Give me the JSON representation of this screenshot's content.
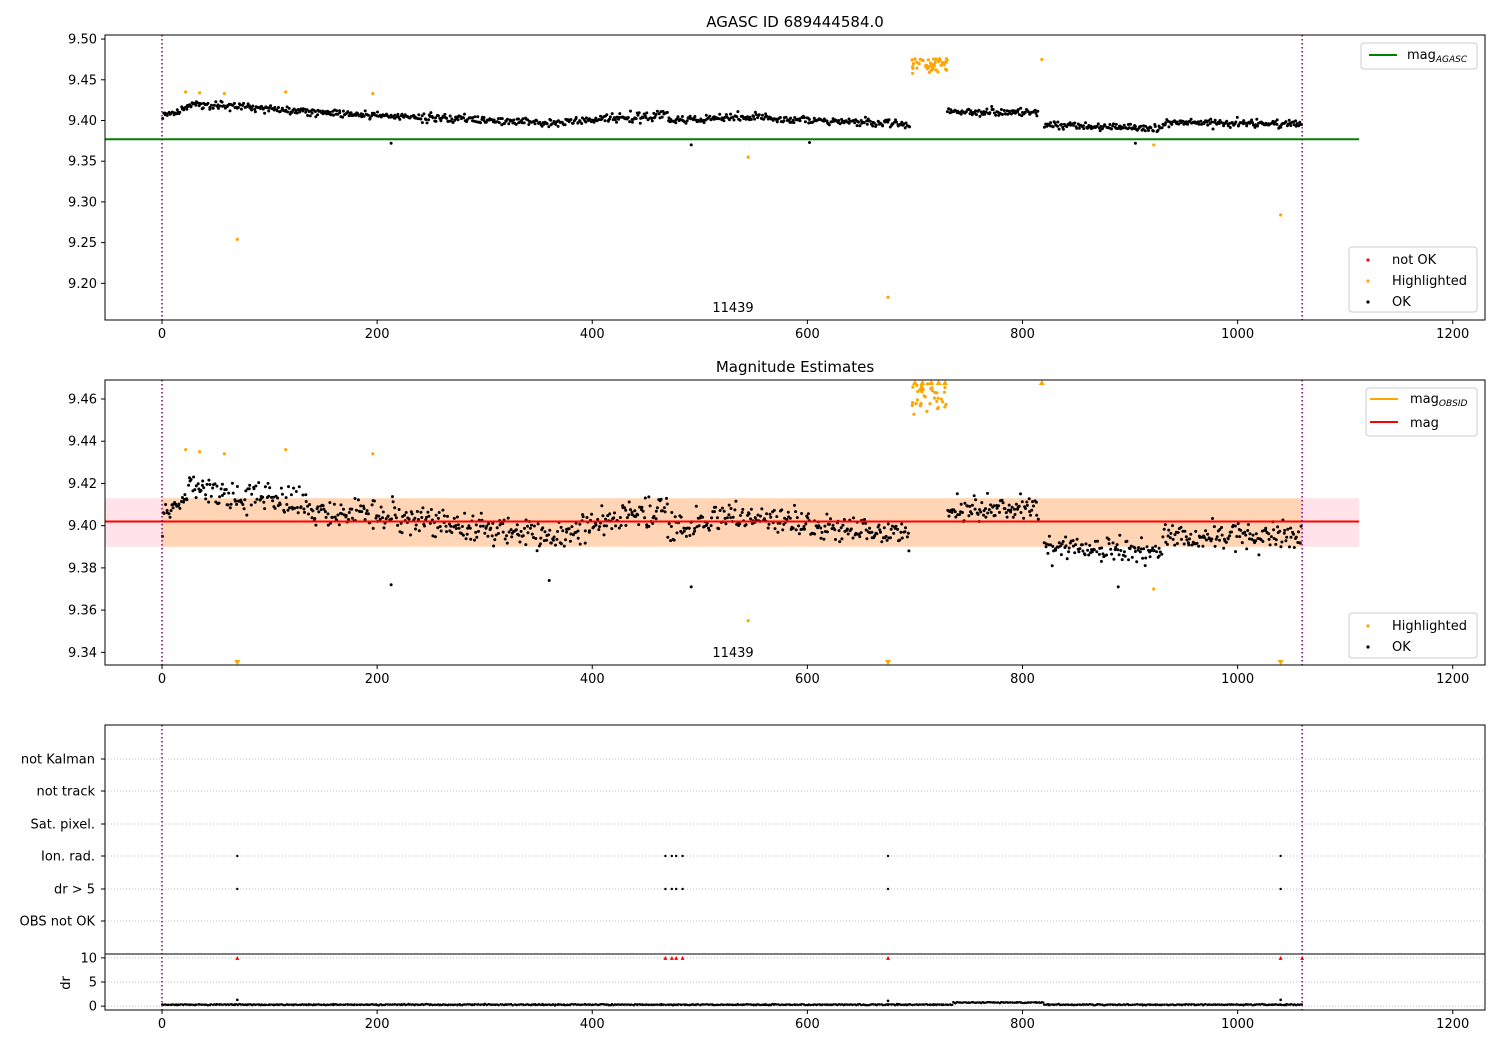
{
  "chart_data": [
    {
      "type": "scatter",
      "title": "AGASC ID 689444584.0",
      "annotation": "11439",
      "ylim": [
        9.155,
        9.505
      ],
      "yticks": [
        9.2,
        9.25,
        9.3,
        9.35,
        9.4,
        9.45,
        9.5
      ],
      "ytick_labels": [
        "9.20",
        "9.25",
        "9.30",
        "9.35",
        "9.40",
        "9.45",
        "9.50"
      ],
      "xlim": [
        -53,
        1230
      ],
      "xticks": [
        0,
        200,
        400,
        600,
        800,
        1000,
        1200
      ],
      "xtick_labels": [
        "0",
        "200",
        "400",
        "600",
        "800",
        "1000",
        "1200"
      ],
      "obs_bounds": [
        0,
        1060
      ],
      "reference_line": {
        "name": "mag",
        "name_sub": "AGASC",
        "value": 9.377,
        "x_range": [
          -53,
          1113
        ],
        "color": "#008000"
      },
      "legend_lines": [
        {
          "name": "mag",
          "sub": "AGASC",
          "color": "#008000"
        }
      ],
      "legend_points": [
        {
          "name": "not OK",
          "color": "#ff0000"
        },
        {
          "name": "Highlighted",
          "color": "#ffa500"
        },
        {
          "name": "OK",
          "color": "#000000"
        }
      ],
      "ok_segments": [
        {
          "x_start": 0,
          "x_end": 25,
          "y_start": 9.405,
          "y_end": 9.415,
          "spread": 0.007
        },
        {
          "x_start": 25,
          "x_end": 135,
          "y_start": 9.42,
          "y_end": 9.412,
          "spread": 0.008
        },
        {
          "x_start": 135,
          "x_end": 350,
          "y_start": 9.41,
          "y_end": 9.398,
          "spread": 0.009
        },
        {
          "x_start": 350,
          "x_end": 470,
          "y_start": 9.395,
          "y_end": 9.408,
          "spread": 0.009
        },
        {
          "x_start": 470,
          "x_end": 530,
          "y_start": 9.4,
          "y_end": 9.405,
          "spread": 0.009
        },
        {
          "x_start": 530,
          "x_end": 695,
          "y_start": 9.405,
          "y_end": 9.395,
          "spread": 0.008
        },
        {
          "x_start": 730,
          "x_end": 815,
          "y_start": 9.41,
          "y_end": 9.41,
          "spread": 0.008
        },
        {
          "x_start": 820,
          "x_end": 930,
          "y_start": 9.395,
          "y_end": 9.39,
          "spread": 0.007
        },
        {
          "x_start": 930,
          "x_end": 1060,
          "y_start": 9.397,
          "y_end": 9.396,
          "spread": 0.008
        }
      ],
      "ok_count": 1050,
      "ok_outliers": [
        [
          213,
          9.372
        ],
        [
          492,
          9.37
        ],
        [
          602,
          9.373
        ],
        [
          905,
          9.372
        ]
      ],
      "highlighted_points": [
        [
          22,
          9.435
        ],
        [
          35,
          9.434
        ],
        [
          58,
          9.433
        ],
        [
          70,
          9.254
        ],
        [
          115,
          9.435
        ],
        [
          196,
          9.433
        ],
        [
          545,
          9.355
        ],
        [
          675,
          9.183
        ],
        [
          818,
          9.475
        ],
        [
          922,
          9.37
        ],
        [
          1040,
          9.284
        ]
      ],
      "highlighted_cluster": {
        "x_start": 697,
        "x_end": 730,
        "y_min": 9.455,
        "y_max": 9.476,
        "count": 55
      }
    },
    {
      "type": "scatter",
      "title": "Magnitude Estimates",
      "annotation": "11439",
      "ylim": [
        9.334,
        9.469
      ],
      "yticks": [
        9.34,
        9.36,
        9.38,
        9.4,
        9.42,
        9.44,
        9.46
      ],
      "ytick_labels": [
        "9.34",
        "9.36",
        "9.38",
        "9.40",
        "9.42",
        "9.44",
        "9.46"
      ],
      "xlim": [
        -53,
        1230
      ],
      "xticks": [
        0,
        200,
        400,
        600,
        800,
        1000,
        1200
      ],
      "xtick_labels": [
        "0",
        "200",
        "400",
        "600",
        "800",
        "1000",
        "1200"
      ],
      "obs_bounds": [
        0,
        1060
      ],
      "mag_line": {
        "name": "mag",
        "value": 9.402,
        "color": "#ff0000"
      },
      "mag_band": {
        "low": 9.39,
        "high": 9.413,
        "x_range": [
          -53,
          1113
        ],
        "color": "#ffc0cb"
      },
      "obsid_band": {
        "low": 9.39,
        "high": 9.413,
        "x_range": [
          0,
          1060
        ],
        "color": "#ffa500"
      },
      "legend_lines": [
        {
          "name": "mag",
          "sub": "OBSID",
          "color": "#ffa500"
        },
        {
          "name": "mag",
          "sub": "",
          "color": "#ff0000"
        }
      ],
      "legend_points": [
        {
          "name": "Highlighted",
          "color": "#ffa500"
        },
        {
          "name": "OK",
          "color": "#000000"
        }
      ],
      "ok_segments": [
        {
          "x_start": 0,
          "x_end": 25,
          "y_start": 9.402,
          "y_end": 9.415,
          "spread": 0.01
        },
        {
          "x_start": 25,
          "x_end": 135,
          "y_start": 9.418,
          "y_end": 9.41,
          "spread": 0.012
        },
        {
          "x_start": 135,
          "x_end": 350,
          "y_start": 9.408,
          "y_end": 9.396,
          "spread": 0.012
        },
        {
          "x_start": 350,
          "x_end": 470,
          "y_start": 9.395,
          "y_end": 9.408,
          "spread": 0.012
        },
        {
          "x_start": 470,
          "x_end": 530,
          "y_start": 9.398,
          "y_end": 9.405,
          "spread": 0.012
        },
        {
          "x_start": 530,
          "x_end": 695,
          "y_start": 9.405,
          "y_end": 9.395,
          "spread": 0.011
        },
        {
          "x_start": 730,
          "x_end": 815,
          "y_start": 9.408,
          "y_end": 9.408,
          "spread": 0.01
        },
        {
          "x_start": 820,
          "x_end": 930,
          "y_start": 9.39,
          "y_end": 9.388,
          "spread": 0.01
        },
        {
          "x_start": 930,
          "x_end": 1060,
          "y_start": 9.395,
          "y_end": 9.395,
          "spread": 0.011
        }
      ],
      "ok_count": 1050,
      "ok_outliers": [
        [
          213,
          9.372
        ],
        [
          492,
          9.371
        ],
        [
          360,
          9.374
        ],
        [
          889,
          9.371
        ]
      ],
      "highlighted_points": [
        [
          22,
          9.436
        ],
        [
          35,
          9.435
        ],
        [
          58,
          9.434
        ],
        [
          115,
          9.436
        ],
        [
          196,
          9.434
        ],
        [
          545,
          9.355
        ],
        [
          922,
          9.37
        ]
      ],
      "highlighted_cluster": {
        "x_start": 697,
        "x_end": 730,
        "y_min": 9.449,
        "y_max": 9.468,
        "count": 40
      },
      "clipped_above": [
        [
          818,
          9.469
        ],
        [
          700,
          9.469
        ],
        [
          707,
          9.469
        ],
        [
          715,
          9.469
        ],
        [
          722,
          9.469
        ],
        [
          728,
          9.469
        ]
      ],
      "clipped_below": [
        [
          70,
          9.334
        ],
        [
          675,
          9.334
        ],
        [
          1040,
          9.334
        ]
      ]
    },
    {
      "type": "scatter",
      "flag_labels": [
        "not Kalman",
        "not track",
        "Sat. pixel.",
        "Ion. rad.",
        "dr > 5",
        "OBS not OK"
      ],
      "flag_points": [
        {
          "flag": "Ion. rad.",
          "x": [
            70,
            468,
            474,
            478,
            484,
            675,
            1040
          ]
        },
        {
          "flag": "dr > 5",
          "x": [
            70,
            468,
            474,
            478,
            484,
            675,
            1040
          ]
        }
      ],
      "dr_ylabel": "dr",
      "dr_ylim": [
        -0.8,
        10.8
      ],
      "dr_yticks": [
        0,
        5,
        10
      ],
      "dr_ytick_labels": [
        "0",
        "5",
        "10"
      ],
      "xlim": [
        -53,
        1230
      ],
      "xticks": [
        0,
        200,
        400,
        600,
        800,
        1000,
        1200
      ],
      "xtick_labels": [
        "0",
        "200",
        "400",
        "600",
        "800",
        "1000",
        "1200"
      ],
      "obs_bounds": [
        0,
        1060
      ],
      "dr_baseline": {
        "value": 0.3,
        "spread": 0.12,
        "count": 1050
      },
      "dr_bump": {
        "x_start": 735,
        "x_end": 820,
        "value": 0.75
      },
      "dr_spikes": [
        [
          70,
          1.3
        ],
        [
          675,
          1.1
        ],
        [
          1040,
          1.3
        ]
      ],
      "dr_clipped": [
        [
          70,
          10
        ],
        [
          468,
          10
        ],
        [
          474,
          10
        ],
        [
          478,
          10
        ],
        [
          484,
          10
        ],
        [
          675,
          10
        ],
        [
          1040,
          10
        ],
        [
          1060,
          10
        ]
      ]
    }
  ]
}
